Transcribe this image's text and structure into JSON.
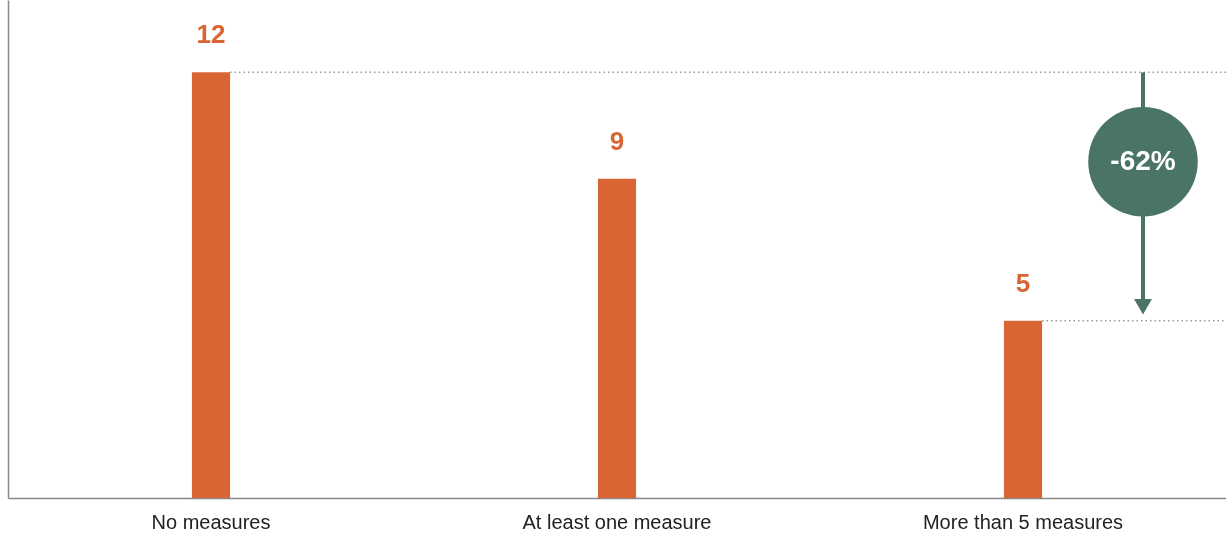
{
  "chart_data": {
    "type": "bar",
    "categories": [
      "No measures",
      "At least one measure",
      "More than 5 measures"
    ],
    "values": [
      12,
      9,
      5
    ],
    "color": "#d96534",
    "data_labels": true,
    "ref_lines": [
      {
        "axis": "y",
        "value": 12,
        "line_style": "dotted",
        "color": "#999999"
      },
      {
        "axis": "y",
        "value": 5,
        "line_style": "dotted",
        "color": "#999999"
      }
    ],
    "annotations": [
      "-62%"
    ]
  }
}
